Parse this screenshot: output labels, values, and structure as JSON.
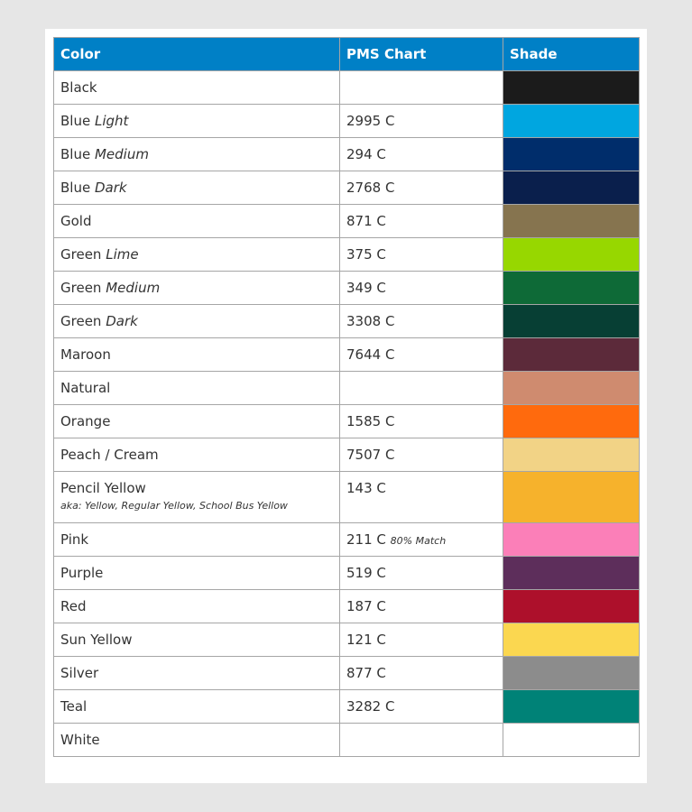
{
  "table": {
    "headers": [
      "Color",
      "PMS Chart",
      "Shade"
    ],
    "header_color": "#0080c6",
    "rows": [
      {
        "name": "Black",
        "qualifier": "",
        "pms": "",
        "shade": "#1b1b1b"
      },
      {
        "name": "Blue",
        "qualifier": "Light",
        "pms": "2995 C",
        "shade": "#00a6e0"
      },
      {
        "name": "Blue",
        "qualifier": "Medium",
        "pms": "294 C",
        "shade": "#002d6b"
      },
      {
        "name": "Blue",
        "qualifier": "Dark",
        "pms": "2768 C",
        "shade": "#0a1f4c"
      },
      {
        "name": "Gold",
        "qualifier": "",
        "pms": "871 C",
        "shade": "#86744f"
      },
      {
        "name": "Green",
        "qualifier": "Lime",
        "pms": "375 C",
        "shade": "#97d700"
      },
      {
        "name": "Green",
        "qualifier": "Medium",
        "pms": "349 C",
        "shade": "#0e6a37"
      },
      {
        "name": "Green",
        "qualifier": "Dark",
        "pms": "3308 C",
        "shade": "#073f34"
      },
      {
        "name": "Maroon",
        "qualifier": "",
        "pms": "7644 C",
        "shade": "#5c2a3a"
      },
      {
        "name": "Natural",
        "qualifier": "",
        "pms": "",
        "shade": "#cf8b6f"
      },
      {
        "name": "Orange",
        "qualifier": "",
        "pms": "1585 C",
        "shade": "#ff6a0d"
      },
      {
        "name": "Peach / Cream",
        "qualifier": "",
        "pms": "7507 C",
        "shade": "#f2d386"
      },
      {
        "name": "Pencil Yellow",
        "qualifier": "",
        "aka": "aka: Yellow, Regular Yellow, School Bus Yellow",
        "pms": "143 C",
        "shade": "#f6b22c"
      },
      {
        "name": "Pink",
        "qualifier": "",
        "pms": "211 C",
        "note": "80% Match",
        "shade": "#fb7fb8"
      },
      {
        "name": "Purple",
        "qualifier": "",
        "pms": "519 C",
        "shade": "#5d2e5b"
      },
      {
        "name": "Red",
        "qualifier": "",
        "pms": "187 C",
        "shade": "#ad102b"
      },
      {
        "name": "Sun Yellow",
        "qualifier": "",
        "pms": "121 C",
        "shade": "#fbd750"
      },
      {
        "name": "Silver",
        "qualifier": "",
        "pms": "877 C",
        "shade": "#8c8c8c"
      },
      {
        "name": "Teal",
        "qualifier": "",
        "pms": "3282 C",
        "shade": "#008277"
      },
      {
        "name": "White",
        "qualifier": "",
        "pms": "",
        "shade": "#ffffff"
      }
    ]
  }
}
